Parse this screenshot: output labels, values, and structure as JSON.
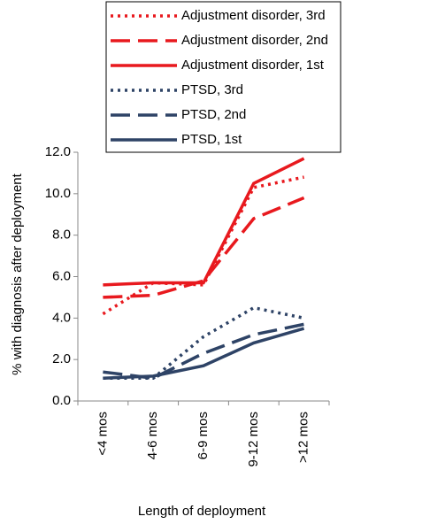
{
  "chart_data": {
    "type": "line",
    "x_label": "Length of deployment",
    "y_label": "% with diagnosis after deployment",
    "categories": [
      "<4 mos",
      "4-6 mos",
      "6-9 mos",
      "9-12 mos",
      ">12 mos"
    ],
    "ylim": [
      0,
      12
    ],
    "yticks": [
      {
        "value": 0,
        "label": "0.0"
      },
      {
        "value": 2,
        "label": "2.0"
      },
      {
        "value": 4,
        "label": "4.0"
      },
      {
        "value": 6,
        "label": "6.0"
      },
      {
        "value": 8,
        "label": "8.0"
      },
      {
        "value": 10,
        "label": "10.0"
      },
      {
        "value": 12,
        "label": "12.0"
      }
    ],
    "legend": "top",
    "series": [
      {
        "name": "Adjustment disorder, 3rd",
        "color": "#e8191e",
        "dash": "dotted",
        "values": [
          4.2,
          5.7,
          5.6,
          10.3,
          10.8
        ]
      },
      {
        "name": "Adjustment disorder, 2nd",
        "color": "#e8191e",
        "dash": "dashed",
        "values": [
          5.0,
          5.1,
          5.8,
          8.8,
          9.8
        ]
      },
      {
        "name": "Adjustment disorder, 1st",
        "color": "#e8191e",
        "dash": "solid",
        "values": [
          5.6,
          5.7,
          5.7,
          10.5,
          11.7
        ]
      },
      {
        "name": "PTSD, 3rd",
        "color": "#2e4366",
        "dash": "dotted",
        "values": [
          1.1,
          1.1,
          3.1,
          4.5,
          4.0
        ]
      },
      {
        "name": "PTSD, 2nd",
        "color": "#2e4366",
        "dash": "dashed",
        "values": [
          1.4,
          1.1,
          2.3,
          3.2,
          3.7
        ]
      },
      {
        "name": "PTSD, 1st",
        "color": "#2e4366",
        "dash": "solid",
        "values": [
          1.1,
          1.2,
          1.7,
          2.8,
          3.5
        ]
      }
    ]
  }
}
